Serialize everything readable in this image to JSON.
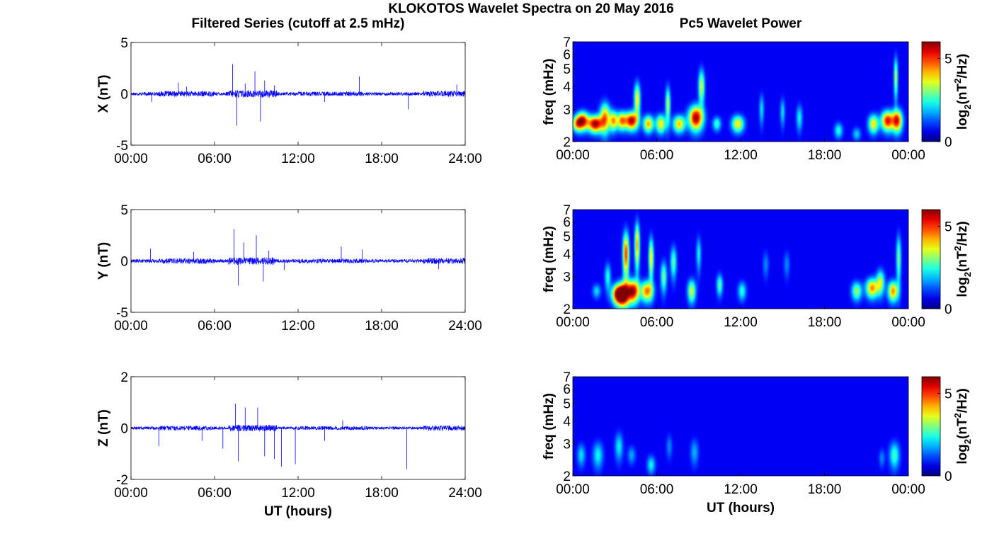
{
  "figure": {
    "title": "KLOKOTOS Wavelet Spectra on 20 May 2016",
    "left_title": "Filtered Series (cutoff at 2.5 mHz)",
    "right_title": "Pc5 Wavelet Power",
    "bottom_xlabel": "UT (hours)"
  },
  "colors": {
    "series_line": "#0000ff",
    "axes": "#000000",
    "colormap": "jet",
    "heatmap_background": "#00008f"
  },
  "chart_data": [
    {
      "type": "line",
      "ylabel": "X (nT)",
      "xlabel": "",
      "ylim": [
        -5,
        5
      ],
      "yticks": [
        "5",
        "0",
        "-5"
      ],
      "xticks": [
        "00:00",
        "06:00",
        "12:00",
        "18:00",
        "24:00"
      ],
      "xlim_hours": [
        0,
        24
      ],
      "noise_amplitude": 0.35,
      "spikes": [
        [
          1.5,
          -0.8
        ],
        [
          3.4,
          1.1
        ],
        [
          4.0,
          0.7
        ],
        [
          7.3,
          2.9
        ],
        [
          7.6,
          -3.1
        ],
        [
          8.2,
          1.0
        ],
        [
          8.9,
          2.2
        ],
        [
          9.3,
          -2.7
        ],
        [
          9.6,
          1.3
        ],
        [
          10.3,
          0.8
        ],
        [
          13.9,
          -0.8
        ],
        [
          16.4,
          1.7
        ],
        [
          19.9,
          -1.5
        ],
        [
          23.4,
          0.9
        ]
      ]
    },
    {
      "type": "line",
      "ylabel": "Y (nT)",
      "xlabel": "",
      "ylim": [
        -5,
        5
      ],
      "yticks": [
        "5",
        "0",
        "-5"
      ],
      "xticks": [
        "00:00",
        "06:00",
        "12:00",
        "18:00",
        "24:00"
      ],
      "xlim_hours": [
        0,
        24
      ],
      "noise_amplitude": 0.35,
      "spikes": [
        [
          1.4,
          1.2
        ],
        [
          4.5,
          0.9
        ],
        [
          7.4,
          3.1
        ],
        [
          7.7,
          -2.4
        ],
        [
          8.1,
          1.8
        ],
        [
          9.0,
          2.5
        ],
        [
          9.5,
          -2.0
        ],
        [
          9.9,
          1.0
        ],
        [
          11.0,
          -0.9
        ],
        [
          15.1,
          1.4
        ],
        [
          16.6,
          1.1
        ],
        [
          22.1,
          -0.8
        ]
      ]
    },
    {
      "type": "line",
      "ylabel": "Z (nT)",
      "xlabel": "UT (hours)",
      "ylim": [
        -2,
        2
      ],
      "yticks": [
        "2",
        "0",
        "-2"
      ],
      "xticks": [
        "00:00",
        "06:00",
        "12:00",
        "18:00",
        "24:00"
      ],
      "xlim_hours": [
        0,
        24
      ],
      "noise_amplitude": 0.12,
      "spikes": [
        [
          2.0,
          -0.7
        ],
        [
          5.1,
          -0.5
        ],
        [
          6.6,
          -0.8
        ],
        [
          7.5,
          0.95
        ],
        [
          7.7,
          -1.3
        ],
        [
          8.2,
          0.8
        ],
        [
          9.1,
          0.8
        ],
        [
          9.6,
          -1.1
        ],
        [
          10.3,
          -1.2
        ],
        [
          10.8,
          -1.5
        ],
        [
          11.8,
          -1.4
        ],
        [
          13.9,
          -0.5
        ],
        [
          15.2,
          0.3
        ],
        [
          19.8,
          -1.6
        ]
      ]
    },
    {
      "type": "heatmap",
      "ylabel": "freq (mHz)",
      "xlabel": "",
      "ylim": [
        2,
        7
      ],
      "yscale": "log",
      "yticks": [
        "7",
        "6",
        "5",
        "4",
        "3",
        "2"
      ],
      "xticks": [
        "00:00",
        "06:00",
        "12:00",
        "18:00",
        "00:00"
      ],
      "xlim_hours": [
        0,
        24
      ],
      "colorbar_label": "log2(nT2/Hz)",
      "colorbar_ticks": [
        "5",
        "0"
      ],
      "clim": [
        0,
        6
      ],
      "blobs": [
        [
          0.3,
          2.5,
          0.25,
          0.16,
          3.2
        ],
        [
          0.7,
          2.6,
          0.3,
          0.2,
          5.2
        ],
        [
          1.6,
          2.5,
          0.35,
          0.18,
          5.8
        ],
        [
          2.3,
          2.7,
          0.25,
          0.35,
          4.2
        ],
        [
          2.9,
          2.6,
          0.2,
          0.22,
          3.8
        ],
        [
          3.5,
          2.6,
          0.25,
          0.2,
          4.2
        ],
        [
          4.2,
          2.6,
          0.3,
          0.2,
          5.6
        ],
        [
          4.6,
          3.4,
          0.15,
          0.5,
          3.6
        ],
        [
          5.4,
          2.5,
          0.25,
          0.18,
          4.0
        ],
        [
          6.3,
          2.5,
          0.25,
          0.2,
          3.6
        ],
        [
          6.8,
          3.2,
          0.12,
          0.5,
          3.0
        ],
        [
          7.6,
          2.5,
          0.3,
          0.18,
          3.8
        ],
        [
          8.8,
          2.7,
          0.35,
          0.28,
          5.8
        ],
        [
          9.2,
          4.0,
          0.15,
          0.6,
          3.2
        ],
        [
          10.3,
          2.5,
          0.2,
          0.15,
          2.2
        ],
        [
          11.8,
          2.5,
          0.3,
          0.18,
          3.6
        ],
        [
          13.5,
          3.0,
          0.12,
          0.4,
          1.6
        ],
        [
          15.0,
          2.9,
          0.12,
          0.35,
          1.6
        ],
        [
          16.2,
          2.7,
          0.15,
          0.3,
          1.8
        ],
        [
          19.0,
          2.3,
          0.2,
          0.15,
          2.0
        ],
        [
          20.3,
          2.2,
          0.2,
          0.12,
          1.5
        ],
        [
          21.5,
          2.5,
          0.25,
          0.2,
          3.6
        ],
        [
          22.5,
          2.6,
          0.3,
          0.22,
          5.2
        ],
        [
          23.2,
          2.6,
          0.25,
          0.25,
          5.0
        ],
        [
          23.1,
          4.5,
          0.1,
          0.8,
          3.0
        ]
      ]
    },
    {
      "type": "heatmap",
      "ylabel": "freq (mHz)",
      "xlabel": "",
      "ylim": [
        2,
        7
      ],
      "yscale": "log",
      "yticks": [
        "7",
        "6",
        "5",
        "4",
        "3",
        "2"
      ],
      "xticks": [
        "00:00",
        "06:00",
        "12:00",
        "18:00",
        "00:00"
      ],
      "xlim_hours": [
        0,
        24
      ],
      "colorbar_label": "log2(nT2/Hz)",
      "colorbar_ticks": [
        "5",
        "0"
      ],
      "clim": [
        0,
        6
      ],
      "blobs": [
        [
          1.7,
          2.5,
          0.2,
          0.15,
          1.6
        ],
        [
          2.5,
          3.0,
          0.15,
          0.35,
          2.0
        ],
        [
          3.2,
          2.4,
          0.3,
          0.2,
          4.8
        ],
        [
          3.6,
          2.4,
          0.3,
          0.25,
          5.8
        ],
        [
          3.8,
          4.0,
          0.15,
          0.8,
          4.8
        ],
        [
          4.3,
          2.5,
          0.3,
          0.25,
          5.6
        ],
        [
          4.6,
          4.5,
          0.12,
          0.9,
          4.2
        ],
        [
          5.3,
          2.5,
          0.3,
          0.22,
          4.4
        ],
        [
          5.6,
          3.8,
          0.12,
          0.7,
          3.6
        ],
        [
          6.5,
          3.0,
          0.15,
          0.4,
          2.6
        ],
        [
          7.2,
          3.6,
          0.15,
          0.5,
          2.4
        ],
        [
          8.5,
          2.5,
          0.2,
          0.25,
          3.2
        ],
        [
          9.0,
          4.0,
          0.12,
          0.6,
          1.8
        ],
        [
          10.5,
          2.7,
          0.15,
          0.25,
          2.4
        ],
        [
          12.1,
          2.5,
          0.2,
          0.2,
          2.0
        ],
        [
          13.8,
          3.5,
          0.15,
          0.4,
          1.0
        ],
        [
          15.3,
          3.5,
          0.15,
          0.4,
          1.0
        ],
        [
          20.3,
          2.5,
          0.25,
          0.2,
          2.8
        ],
        [
          21.4,
          2.6,
          0.3,
          0.22,
          4.2
        ],
        [
          22.0,
          2.8,
          0.2,
          0.3,
          3.0
        ],
        [
          22.9,
          2.5,
          0.25,
          0.22,
          4.2
        ],
        [
          23.3,
          3.8,
          0.12,
          0.8,
          2.6
        ]
      ]
    },
    {
      "type": "heatmap",
      "ylabel": "freq (mHz)",
      "xlabel": "UT (hours)",
      "ylim": [
        2,
        7
      ],
      "yscale": "log",
      "yticks": [
        "7",
        "6",
        "5",
        "4",
        "3",
        "2"
      ],
      "xticks": [
        "00:00",
        "06:00",
        "12:00",
        "18:00",
        "00:00"
      ],
      "xlim_hours": [
        0,
        24
      ],
      "colorbar_label": "log2(nT2/Hz)",
      "colorbar_ticks": [
        "5",
        "0"
      ],
      "clim": [
        0,
        6
      ],
      "blobs": [
        [
          0.6,
          2.6,
          0.2,
          0.25,
          1.6
        ],
        [
          1.8,
          2.6,
          0.25,
          0.3,
          1.8
        ],
        [
          3.3,
          2.9,
          0.2,
          0.35,
          1.7
        ],
        [
          4.2,
          2.6,
          0.2,
          0.2,
          1.2
        ],
        [
          5.6,
          2.3,
          0.2,
          0.18,
          1.8
        ],
        [
          6.9,
          2.9,
          0.15,
          0.3,
          1.0
        ],
        [
          8.7,
          2.7,
          0.2,
          0.3,
          1.3
        ],
        [
          22.1,
          2.5,
          0.15,
          0.2,
          1.0
        ],
        [
          23.0,
          2.6,
          0.25,
          0.3,
          2.2
        ]
      ]
    }
  ]
}
